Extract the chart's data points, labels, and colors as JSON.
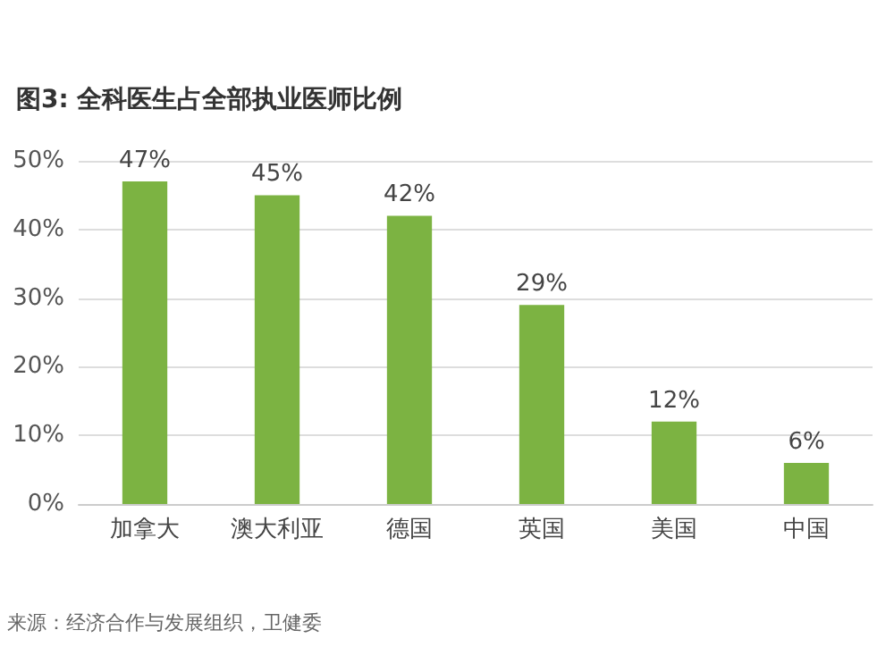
{
  "chart_data": {
    "type": "bar",
    "title": "图3: 全科医生占全部执业医师比例",
    "categories": [
      "加拿大",
      "澳大利亚",
      "德国",
      "英国",
      "美国",
      "中国"
    ],
    "values": [
      47,
      45,
      42,
      29,
      12,
      6
    ],
    "value_labels": [
      "47%",
      "45%",
      "42%",
      "29%",
      "12%",
      "6%"
    ],
    "color": "#7cb342",
    "ylim": [
      0,
      50
    ],
    "yticks": [
      {
        "value": 0,
        "label": "0%"
      },
      {
        "value": 10,
        "label": "10%"
      },
      {
        "value": 20,
        "label": "20%"
      },
      {
        "value": 30,
        "label": "30%"
      },
      {
        "value": 40,
        "label": "40%"
      },
      {
        "value": 50,
        "label": "50%"
      }
    ],
    "grid": "y",
    "annotations": [
      "来源：经济合作与发展组织，卫健委"
    ]
  }
}
